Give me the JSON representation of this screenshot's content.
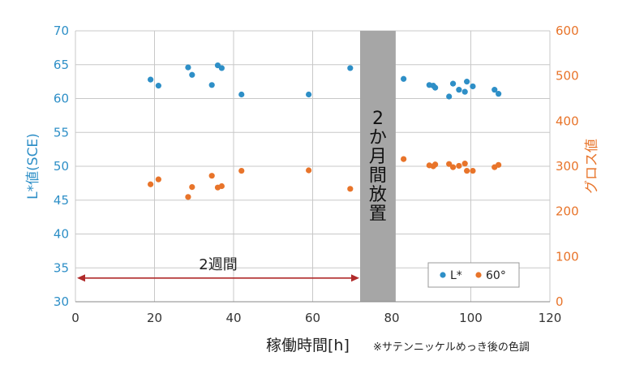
{
  "chart_data": {
    "type": "scatter",
    "xlabel": "稼働時間[h]",
    "note": "※サテンニッケルめっき後の色調",
    "ylabel_left": "L*値(SCE)",
    "ylabel_right": "グロス値",
    "xlim": [
      0,
      120
    ],
    "ylim_left": [
      30,
      70
    ],
    "ylim_right": [
      0,
      600
    ],
    "x_ticks": [
      "0",
      "20",
      "40",
      "60",
      "80",
      "100",
      "120"
    ],
    "y_left_ticks": [
      "30",
      "35",
      "40",
      "45",
      "50",
      "55",
      "60",
      "65",
      "70"
    ],
    "y_right_ticks": [
      "0",
      "100",
      "200",
      "300",
      "400",
      "500",
      "600"
    ],
    "grid": true,
    "legend_position": "bottom-right",
    "colors": {
      "L": "#2e8fc7",
      "gloss": "#e8742a",
      "band": "#a6a6a6",
      "arrow": "#b02a2a"
    },
    "band": {
      "x_start": 72,
      "x_end": 81,
      "label_lines": [
        "2",
        "か",
        "月",
        "間",
        "放",
        "置"
      ]
    },
    "range_arrow": {
      "x_start": 0,
      "x_end": 72,
      "y_value": 33.5,
      "label": "2週間"
    },
    "series": [
      {
        "name": "L*",
        "axis": "left",
        "points": [
          [
            19,
            62.8
          ],
          [
            21,
            61.9
          ],
          [
            28.5,
            64.6
          ],
          [
            29.5,
            63.5
          ],
          [
            34.5,
            62.0
          ],
          [
            36,
            64.9
          ],
          [
            37,
            64.5
          ],
          [
            42,
            60.6
          ],
          [
            59,
            60.6
          ],
          [
            69.5,
            64.5
          ],
          [
            83,
            62.9
          ],
          [
            89.5,
            62.0
          ],
          [
            90.5,
            61.9
          ],
          [
            91,
            61.6
          ],
          [
            94.5,
            60.3
          ],
          [
            95.5,
            62.2
          ],
          [
            97,
            61.3
          ],
          [
            98.5,
            61.0
          ],
          [
            99,
            62.5
          ],
          [
            100.5,
            61.8
          ],
          [
            106,
            61.3
          ],
          [
            107,
            60.7
          ]
        ]
      },
      {
        "name": "60°",
        "axis": "right",
        "points": [
          [
            19,
            260
          ],
          [
            21,
            271
          ],
          [
            28.5,
            232
          ],
          [
            29.5,
            254
          ],
          [
            34.5,
            279
          ],
          [
            36,
            253
          ],
          [
            37,
            256
          ],
          [
            42,
            290
          ],
          [
            59,
            291
          ],
          [
            69.5,
            250
          ],
          [
            83,
            316
          ],
          [
            89.5,
            302
          ],
          [
            90.5,
            300
          ],
          [
            91,
            304
          ],
          [
            94.5,
            305
          ],
          [
            95.5,
            298
          ],
          [
            97,
            301
          ],
          [
            98.5,
            306
          ],
          [
            99,
            290
          ],
          [
            100.5,
            290
          ],
          [
            106,
            298
          ],
          [
            107,
            303
          ]
        ]
      }
    ]
  }
}
